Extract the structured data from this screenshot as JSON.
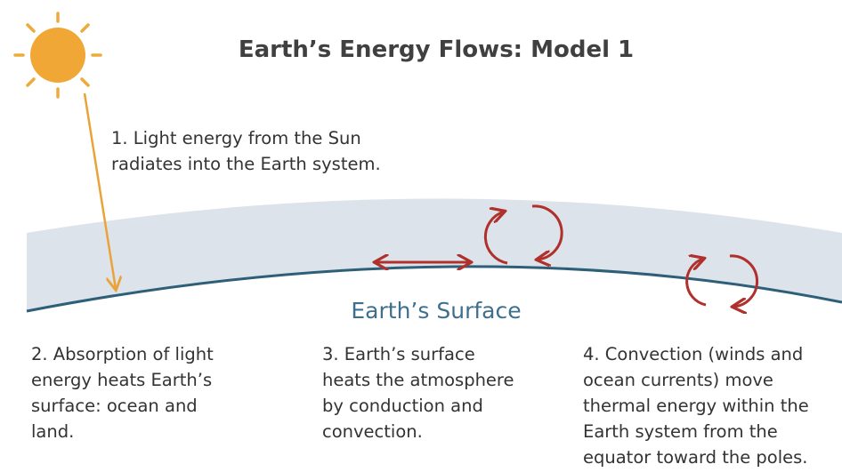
{
  "title": "Earth’s Energy Flows: Model 1",
  "surface_label": "Earth’s Surface",
  "steps": [
    {
      "lines": [
        "1. Light energy from the Sun",
        "radiates into the Earth system."
      ]
    },
    {
      "lines": [
        "2. Absorption of light",
        "energy heats Earth’s",
        "surface: ocean and",
        "land."
      ]
    },
    {
      "lines": [
        "3. Earth’s surface",
        "heats the atmosphere",
        "by conduction and",
        "convection."
      ]
    },
    {
      "lines": [
        "4. Convection (winds and",
        "ocean currents) move",
        "thermal energy within the",
        "Earth system from the",
        "equator toward the poles."
      ]
    }
  ]
}
